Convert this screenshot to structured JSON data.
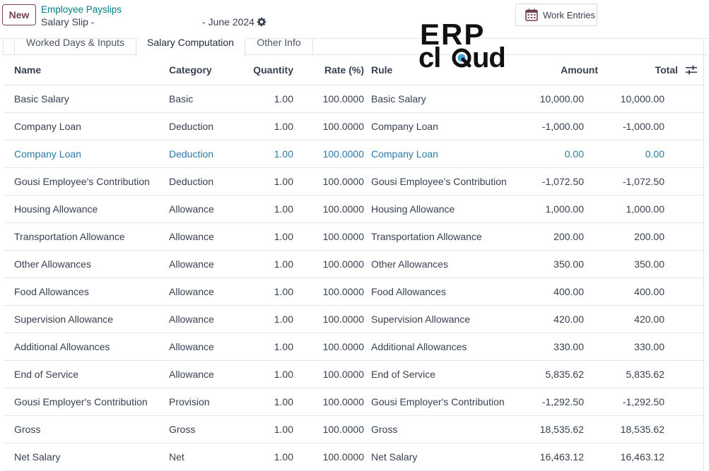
{
  "header": {
    "new_label": "New",
    "breadcrumb_parent": "Employee Payslips",
    "record_title": "Salary Slip -",
    "period": "- June 2024",
    "work_entries_label": "Work Entries"
  },
  "logo": {
    "line1": "ERP",
    "line2": "cloud"
  },
  "tabs": [
    {
      "label": "Worked Days & Inputs",
      "active": false
    },
    {
      "label": "Salary Computation",
      "active": true
    },
    {
      "label": "Other Info",
      "active": false
    }
  ],
  "table": {
    "columns": {
      "name": "Name",
      "category": "Category",
      "quantity": "Quantity",
      "rate": "Rate (%)",
      "rule": "Rule",
      "amount": "Amount",
      "total": "Total"
    },
    "rows": [
      {
        "name": "Basic Salary",
        "category": "Basic",
        "quantity": "1.00",
        "rate": "100.0000",
        "rule": "Basic Salary",
        "amount": "10,000.00",
        "total": "10,000.00"
      },
      {
        "name": "Company Loan",
        "category": "Deduction",
        "quantity": "1.00",
        "rate": "100.0000",
        "rule": "Company Loan",
        "amount": "-1,000.00",
        "total": "-1,000.00"
      },
      {
        "name": "Company Loan",
        "category": "Deduction",
        "quantity": "1.00",
        "rate": "100.0000",
        "rule": "Company Loan",
        "amount": "0.00",
        "total": "0.00"
      },
      {
        "name": "Gousi Employee's Contribution",
        "category": "Deduction",
        "quantity": "1.00",
        "rate": "100.0000",
        "rule": "Gousi Employee's Contribution",
        "amount": "-1,072.50",
        "total": "-1,072.50"
      },
      {
        "name": "Housing Allowance",
        "category": "Allowance",
        "quantity": "1.00",
        "rate": "100.0000",
        "rule": "Housing Allowance",
        "amount": "1,000.00",
        "total": "1,000.00"
      },
      {
        "name": "Transportation Allowance",
        "category": "Allowance",
        "quantity": "1.00",
        "rate": "100.0000",
        "rule": "Transportation Allowance",
        "amount": "200.00",
        "total": "200.00"
      },
      {
        "name": "Other Allowances",
        "category": "Allowance",
        "quantity": "1.00",
        "rate": "100.0000",
        "rule": "Other Allowances",
        "amount": "350.00",
        "total": "350.00"
      },
      {
        "name": "Food Allowances",
        "category": "Allowance",
        "quantity": "1.00",
        "rate": "100.0000",
        "rule": "Food Allowances",
        "amount": "400.00",
        "total": "400.00"
      },
      {
        "name": "Supervision Allowance",
        "category": "Allowance",
        "quantity": "1.00",
        "rate": "100.0000",
        "rule": "Supervision Allowance",
        "amount": "420.00",
        "total": "420.00"
      },
      {
        "name": "Additional Allowances",
        "category": "Allowance",
        "quantity": "1.00",
        "rate": "100.0000",
        "rule": "Additional Allowances",
        "amount": "330.00",
        "total": "330.00"
      },
      {
        "name": "End of Service",
        "category": "Allowance",
        "quantity": "1.00",
        "rate": "100.0000",
        "rule": "End of Service",
        "amount": "5,835.62",
        "total": "5,835.62"
      },
      {
        "name": "Gousi Employer's Contribution",
        "category": "Provision",
        "quantity": "1.00",
        "rate": "100.0000",
        "rule": "Gousi Employer's Contribution",
        "amount": "-1,292.50",
        "total": "-1,292.50"
      },
      {
        "name": "Gross",
        "category": "Gross",
        "quantity": "1.00",
        "rate": "100.0000",
        "rule": "Gross",
        "amount": "18,535.62",
        "total": "18,535.62"
      },
      {
        "name": "Net Salary",
        "category": "Net",
        "quantity": "1.00",
        "rate": "100.0000",
        "rule": "Net Salary",
        "amount": "16,463.12",
        "total": "16,463.12"
      }
    ]
  },
  "colors": {
    "accent": "#71424f",
    "link": "#017e84",
    "highlight_row": "#2a7aa8"
  },
  "icons": {
    "settings": "gear-icon",
    "work_entries": "calendar-icon",
    "columns": "sliders-icon"
  }
}
